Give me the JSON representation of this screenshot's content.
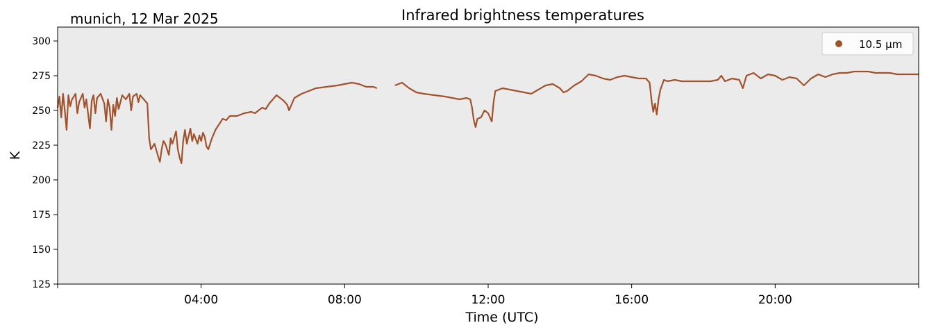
{
  "chart_data": {
    "type": "line",
    "title": "Infrared brightness temperatures",
    "subtitle": "munich, 12 Mar 2025",
    "xlabel": "Time (UTC)",
    "ylabel": "K",
    "xlim": [
      0,
      24
    ],
    "ylim": [
      125,
      310
    ],
    "xticks": [
      {
        "value": 4,
        "label": "04:00"
      },
      {
        "value": 8,
        "label": "08:00"
      },
      {
        "value": 12,
        "label": "12:00"
      },
      {
        "value": 16,
        "label": "16:00"
      },
      {
        "value": 20,
        "label": "20:00"
      }
    ],
    "yticks": [
      {
        "value": 125,
        "label": "125"
      },
      {
        "value": 150,
        "label": "150"
      },
      {
        "value": 175,
        "label": "175"
      },
      {
        "value": 200,
        "label": "200"
      },
      {
        "value": 225,
        "label": "225"
      },
      {
        "value": 250,
        "label": "250"
      },
      {
        "value": 275,
        "label": "275"
      },
      {
        "value": 300,
        "label": "300"
      }
    ],
    "grid": false,
    "legend_position": "top-right",
    "background_color": "#ebebeb",
    "series": [
      {
        "name": "10.5 µm",
        "color": "#a0522d",
        "segments": [
          [
            [
              0.0,
              252
            ],
            [
              0.05,
              260
            ],
            [
              0.1,
              245
            ],
            [
              0.15,
              262
            ],
            [
              0.2,
              250
            ],
            [
              0.25,
              236
            ],
            [
              0.3,
              261
            ],
            [
              0.35,
              253
            ],
            [
              0.4,
              258
            ],
            [
              0.5,
              262
            ],
            [
              0.55,
              248
            ],
            [
              0.6,
              256
            ],
            [
              0.7,
              262
            ],
            [
              0.75,
              252
            ],
            [
              0.8,
              258
            ],
            [
              0.9,
              237
            ],
            [
              0.95,
              257
            ],
            [
              1.0,
              261
            ],
            [
              1.05,
              248
            ],
            [
              1.1,
              259
            ],
            [
              1.2,
              262
            ],
            [
              1.3,
              255
            ],
            [
              1.35,
              242
            ],
            [
              1.4,
              258
            ],
            [
              1.45,
              252
            ],
            [
              1.5,
              236
            ],
            [
              1.55,
              254
            ],
            [
              1.6,
              246
            ],
            [
              1.65,
              259
            ],
            [
              1.7,
              251
            ],
            [
              1.8,
              261
            ],
            [
              1.9,
              258
            ],
            [
              2.0,
              262
            ],
            [
              2.05,
              250
            ],
            [
              2.1,
              260
            ],
            [
              2.2,
              262
            ],
            [
              2.25,
              256
            ],
            [
              2.3,
              261
            ],
            [
              2.4,
              258
            ],
            [
              2.5,
              255
            ],
            [
              2.55,
              230
            ],
            [
              2.6,
              222
            ],
            [
              2.7,
              226
            ],
            [
              2.8,
              217
            ],
            [
              2.85,
              213
            ],
            [
              2.9,
              222
            ],
            [
              2.95,
              228
            ],
            [
              3.0,
              226
            ],
            [
              3.1,
              218
            ],
            [
              3.15,
              230
            ],
            [
              3.2,
              226
            ],
            [
              3.3,
              235
            ],
            [
              3.35,
              222
            ],
            [
              3.4,
              216
            ],
            [
              3.45,
              212
            ],
            [
              3.5,
              228
            ],
            [
              3.55,
              236
            ],
            [
              3.6,
              226
            ],
            [
              3.7,
              237
            ],
            [
              3.75,
              228
            ],
            [
              3.8,
              233
            ],
            [
              3.9,
              226
            ],
            [
              3.95,
              232
            ],
            [
              4.0,
              228
            ],
            [
              4.05,
              234
            ],
            [
              4.1,
              231
            ],
            [
              4.15,
              224
            ],
            [
              4.2,
              222
            ],
            [
              4.25,
              226
            ],
            [
              4.3,
              230
            ],
            [
              4.4,
              236
            ],
            [
              4.5,
              240
            ],
            [
              4.6,
              244
            ],
            [
              4.7,
              243
            ],
            [
              4.8,
              246
            ],
            [
              5.0,
              246
            ],
            [
              5.2,
              248
            ],
            [
              5.4,
              249
            ],
            [
              5.5,
              248
            ],
            [
              5.6,
              250
            ],
            [
              5.7,
              252
            ],
            [
              5.8,
              251
            ],
            [
              5.9,
              255
            ],
            [
              6.0,
              258
            ],
            [
              6.1,
              261
            ],
            [
              6.2,
              259
            ],
            [
              6.3,
              257
            ],
            [
              6.4,
              254
            ],
            [
              6.45,
              250
            ],
            [
              6.5,
              253
            ],
            [
              6.6,
              259
            ],
            [
              6.8,
              262
            ],
            [
              7.0,
              264
            ],
            [
              7.2,
              266
            ],
            [
              7.5,
              267
            ],
            [
              7.8,
              268
            ],
            [
              8.0,
              269
            ],
            [
              8.2,
              270
            ],
            [
              8.4,
              269
            ],
            [
              8.6,
              267
            ],
            [
              8.8,
              267
            ],
            [
              8.9,
              266
            ]
          ],
          [
            [
              9.4,
              268
            ],
            [
              9.6,
              270
            ],
            [
              9.8,
              266
            ],
            [
              10.0,
              263
            ],
            [
              10.2,
              262
            ],
            [
              10.5,
              261
            ],
            [
              10.8,
              260
            ],
            [
              11.0,
              259
            ],
            [
              11.2,
              258
            ],
            [
              11.4,
              259
            ],
            [
              11.5,
              258
            ],
            [
              11.55,
              252
            ],
            [
              11.6,
              243
            ],
            [
              11.65,
              238
            ],
            [
              11.7,
              244
            ],
            [
              11.8,
              245
            ],
            [
              11.9,
              250
            ],
            [
              12.0,
              248
            ],
            [
              12.1,
              242
            ],
            [
              12.15,
              256
            ],
            [
              12.2,
              264
            ],
            [
              12.4,
              266
            ],
            [
              12.6,
              265
            ],
            [
              12.8,
              264
            ],
            [
              13.0,
              263
            ],
            [
              13.2,
              262
            ],
            [
              13.4,
              265
            ],
            [
              13.6,
              268
            ],
            [
              13.8,
              269
            ],
            [
              14.0,
              266
            ],
            [
              14.1,
              263
            ],
            [
              14.2,
              264
            ],
            [
              14.4,
              268
            ],
            [
              14.6,
              271
            ],
            [
              14.8,
              276
            ],
            [
              15.0,
              275
            ],
            [
              15.2,
              273
            ],
            [
              15.4,
              272
            ],
            [
              15.6,
              274
            ],
            [
              15.8,
              275
            ],
            [
              16.0,
              274
            ],
            [
              16.2,
              273
            ],
            [
              16.4,
              273
            ],
            [
              16.5,
              270
            ],
            [
              16.55,
              258
            ],
            [
              16.6,
              249
            ],
            [
              16.65,
              255
            ],
            [
              16.7,
              247
            ],
            [
              16.75,
              258
            ],
            [
              16.8,
              265
            ],
            [
              16.9,
              272
            ],
            [
              17.0,
              271
            ],
            [
              17.2,
              272
            ],
            [
              17.4,
              271
            ],
            [
              17.6,
              271
            ],
            [
              17.8,
              271
            ],
            [
              18.0,
              271
            ],
            [
              18.2,
              271
            ],
            [
              18.4,
              272
            ],
            [
              18.5,
              275
            ],
            [
              18.6,
              271
            ],
            [
              18.8,
              273
            ],
            [
              19.0,
              272
            ],
            [
              19.1,
              266
            ],
            [
              19.2,
              275
            ],
            [
              19.4,
              277
            ],
            [
              19.6,
              273
            ],
            [
              19.8,
              276
            ],
            [
              20.0,
              275
            ],
            [
              20.2,
              272
            ],
            [
              20.4,
              274
            ],
            [
              20.6,
              273
            ],
            [
              20.8,
              268
            ],
            [
              21.0,
              273
            ],
            [
              21.2,
              276
            ],
            [
              21.4,
              274
            ],
            [
              21.6,
              276
            ],
            [
              21.8,
              277
            ],
            [
              22.0,
              277
            ],
            [
              22.2,
              278
            ],
            [
              22.4,
              278
            ],
            [
              22.6,
              278
            ],
            [
              22.8,
              277
            ],
            [
              23.0,
              277
            ],
            [
              23.2,
              277
            ],
            [
              23.4,
              276
            ],
            [
              23.6,
              276
            ],
            [
              23.8,
              276
            ],
            [
              24.0,
              276
            ]
          ]
        ]
      }
    ]
  }
}
